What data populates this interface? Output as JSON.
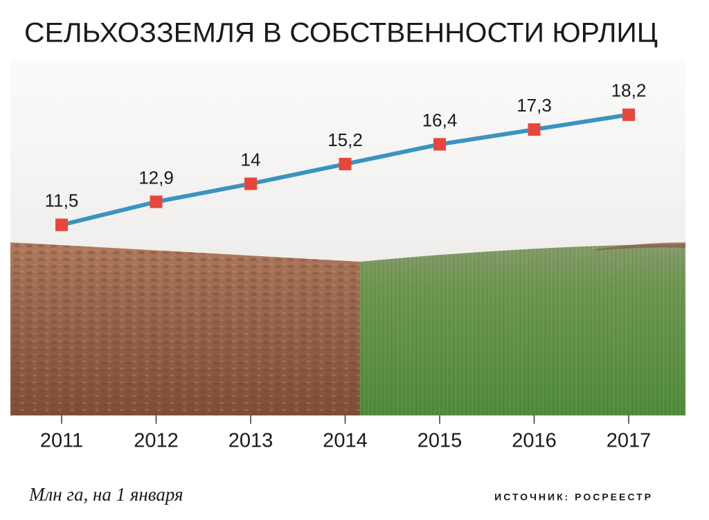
{
  "chart_data": {
    "type": "line",
    "title": "СЕЛЬХОЗЗЕМЛЯ В СОБСТВЕННОСТИ ЮРЛИЦ",
    "subtitle": "Млн га, на 1 января",
    "source": "ИСТОЧНИК: РОСРЕЕСТР",
    "categories": [
      "2011",
      "2012",
      "2013",
      "2014",
      "2015",
      "2016",
      "2017"
    ],
    "values": [
      11.5,
      12.9,
      14,
      15.2,
      16.4,
      17.3,
      18.2
    ],
    "value_labels": [
      "11,5",
      "12,9",
      "14",
      "15,2",
      "16,4",
      "17,3",
      "18,2"
    ],
    "color": "#3a93c0",
    "marker_color": "#e8463a",
    "ylim": [
      5,
      20
    ]
  }
}
